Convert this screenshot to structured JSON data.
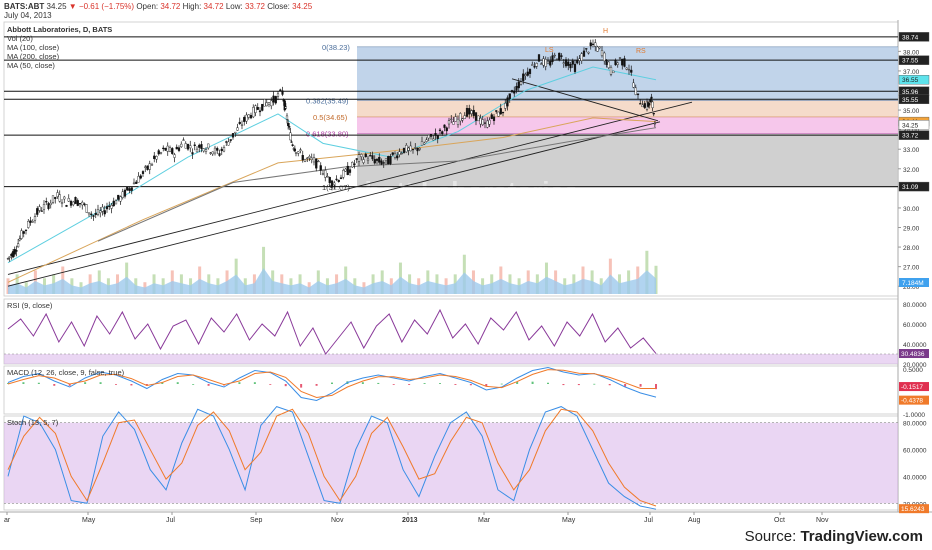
{
  "header": {
    "symbol_line": {
      "symbol": "BATS:ABT",
      "last": "34.25",
      "change": "▼ −0.61 (−1.75%)",
      "open_label": "Open:",
      "open": "34.72",
      "high_label": "High:",
      "high": "34.72",
      "low_label": "Low:",
      "low": "33.72",
      "close_label": "Close:",
      "close": "34.25"
    },
    "date": "July 04, 2013"
  },
  "main_pane": {
    "title": "Abbott Laboratories, D, BATS",
    "studies": [
      "Vol (20)",
      "MA (100, close)",
      "MA (200, close)",
      "MA (50, close)"
    ],
    "watermark": "Abbott Laboratories",
    "fib_labels": [
      "0(38.23)",
      "0.382(35.49)",
      "0.5(34.65)",
      "0.618(33.80)",
      "1(31.07)"
    ],
    "pattern_labels": [
      "LS",
      "H",
      "RS"
    ],
    "price_ticks": [
      "38.00",
      "37.00",
      "35.00",
      "34.00",
      "33.00",
      "32.00",
      "30.00",
      "29.00",
      "28.00",
      "27.00",
      "26.00"
    ],
    "price_tags": [
      {
        "text": "38.74",
        "bg": "#222222",
        "fg": "#ffffff"
      },
      {
        "text": "37.55",
        "bg": "#222222",
        "fg": "#ffffff"
      },
      {
        "text": "36.55",
        "bg": "#5ee3ec",
        "fg": "#222222"
      },
      {
        "text": "35.96",
        "bg": "#222222",
        "fg": "#ffffff"
      },
      {
        "text": "35.55",
        "bg": "#222222",
        "fg": "#ffffff"
      },
      {
        "text": "34.41",
        "bg": "#f2a33a",
        "fg": "#222222"
      },
      {
        "text": "34.25",
        "bg": "#ffffff",
        "fg": "#222222"
      },
      {
        "text": "33.72",
        "bg": "#222222",
        "fg": "#ffffff"
      },
      {
        "text": "31.09",
        "bg": "#222222",
        "fg": "#ffffff"
      }
    ],
    "volume_tag": {
      "text": "7.184M",
      "bg": "#3fa1ee",
      "fg": "#ffffff"
    }
  },
  "rsi_pane": {
    "title": "RSI (9, close)",
    "ticks": [
      "80.0000",
      "60.0000",
      "40.0000",
      "20.0000"
    ],
    "tag": {
      "text": "30.4836",
      "bg": "#7a3a8a",
      "fg": "#ffffff"
    }
  },
  "macd_pane": {
    "title": "MACD (12, 26, close, 9, false, true)",
    "ticks": [
      "0.5000",
      "0.0000",
      "-0.5000",
      "-1.0000"
    ],
    "tags": [
      {
        "text": "-0.1517",
        "bg": "#e03050",
        "fg": "#ffffff"
      },
      {
        "text": "-0.4378",
        "bg": "#f07a2a",
        "fg": "#ffffff"
      }
    ]
  },
  "stoch_pane": {
    "title": "Stoch (13, 5, 7)",
    "ticks": [
      "80.0000",
      "60.0000",
      "40.0000",
      "20.0000"
    ],
    "tag": {
      "text": "15.6243",
      "bg": "#f07a2a",
      "fg": "#ffffff"
    }
  },
  "time_axis": [
    "ar",
    "May",
    "Jul",
    "Sep",
    "Nov",
    "2013",
    "Mar",
    "May",
    "Jul",
    "Aug",
    "Oct",
    "Nov"
  ],
  "source": {
    "prefix": "Source: ",
    "brand": "TradingView.com"
  },
  "colors": {
    "ma50": "#5ecfe0",
    "ma100": "#d9a55a",
    "ma200": "#777777",
    "volume": "#9ec9ec",
    "rsi": "#8a3a9a",
    "macd": "#3a8ee6",
    "signal": "#f07a2a",
    "stoch_k": "#3a8ee6",
    "stoch_d": "#f07a2a",
    "band": "#d8b5ea",
    "fib_top": "#b6cde6",
    "fib_mid": "#f4d7c4",
    "fib_pink": "#f6c4ea",
    "fib_bottom": "#c8c8c8"
  },
  "chart_data": [
    {
      "type": "candlestick",
      "title": "Abbott Laboratories, D, BATS",
      "ylim": [
        25.5,
        39.5
      ],
      "x_months": [
        "Mar 2012",
        "Apr 2012",
        "May 2012",
        "Jun 2012",
        "Jul 2012",
        "Aug 2012",
        "Sep 2012",
        "Oct 2012",
        "Nov 2012",
        "Dec 2012",
        "Jan 2013",
        "Feb 2013",
        "Mar 2013",
        "Apr 2013",
        "May 2013",
        "Jun 2013",
        "Jul 2013"
      ],
      "close_path": [
        [
          0,
          27.4
        ],
        [
          3,
          27.8
        ],
        [
          6,
          28.6
        ],
        [
          10,
          29.3
        ],
        [
          14,
          29.9
        ],
        [
          18,
          30.2
        ],
        [
          22,
          30.6
        ],
        [
          26,
          30.3
        ],
        [
          30,
          30.4
        ],
        [
          34,
          30.1
        ],
        [
          38,
          29.6
        ],
        [
          42,
          29.8
        ],
        [
          46,
          30.2
        ],
        [
          50,
          30.5
        ],
        [
          54,
          31.0
        ],
        [
          58,
          31.5
        ],
        [
          62,
          32.0
        ],
        [
          66,
          32.6
        ],
        [
          70,
          33.0
        ],
        [
          74,
          32.8
        ],
        [
          78,
          33.4
        ],
        [
          82,
          33.0
        ],
        [
          86,
          33.2
        ],
        [
          90,
          33.0
        ],
        [
          94,
          32.8
        ],
        [
          98,
          33.4
        ],
        [
          102,
          34.0
        ],
        [
          106,
          34.6
        ],
        [
          110,
          35.0
        ],
        [
          114,
          35.3
        ],
        [
          118,
          35.5
        ],
        [
          122,
          35.9
        ],
        [
          124,
          34.6
        ],
        [
          126,
          33.4
        ],
        [
          128,
          33.0
        ],
        [
          132,
          32.5
        ],
        [
          136,
          32.4
        ],
        [
          140,
          31.9
        ],
        [
          144,
          31.3
        ],
        [
          148,
          31.6
        ],
        [
          152,
          32.0
        ],
        [
          156,
          32.5
        ],
        [
          160,
          32.6
        ],
        [
          164,
          32.4
        ],
        [
          168,
          32.3
        ],
        [
          172,
          32.7
        ],
        [
          176,
          33.0
        ],
        [
          180,
          32.9
        ],
        [
          184,
          33.2
        ],
        [
          188,
          33.6
        ],
        [
          192,
          33.8
        ],
        [
          196,
          34.3
        ],
        [
          200,
          34.5
        ],
        [
          204,
          34.9
        ],
        [
          208,
          34.7
        ],
        [
          212,
          34.2
        ],
        [
          216,
          34.7
        ],
        [
          220,
          35.0
        ],
        [
          224,
          35.8
        ],
        [
          228,
          36.5
        ],
        [
          232,
          37.1
        ],
        [
          236,
          37.6
        ],
        [
          240,
          37.3
        ],
        [
          244,
          37.8
        ],
        [
          248,
          37.5
        ],
        [
          252,
          37.2
        ],
        [
          256,
          37.9
        ],
        [
          260,
          38.3
        ],
        [
          264,
          38.0
        ],
        [
          268,
          37.0
        ],
        [
          272,
          37.6
        ],
        [
          276,
          37.2
        ],
        [
          280,
          35.6
        ],
        [
          284,
          35.2
        ],
        [
          286,
          35.5
        ],
        [
          288,
          34.25
        ]
      ],
      "volume_M": [
        4,
        5,
        3,
        6,
        4,
        5,
        7,
        4,
        3,
        5,
        6,
        4,
        5,
        8,
        4,
        3,
        5,
        4,
        6,
        5,
        4,
        7,
        5,
        4,
        6,
        9,
        4,
        5,
        12,
        6,
        5,
        4,
        5,
        3,
        6,
        4,
        5,
        7,
        4,
        3,
        5,
        6,
        4,
        8,
        5,
        4,
        6,
        5,
        4,
        5,
        10,
        6,
        4,
        5,
        7,
        5,
        4,
        6,
        5,
        8,
        6,
        4,
        5,
        7,
        6,
        4,
        9,
        5,
        6,
        7,
        11,
        7.184
      ],
      "moving_averages": {
        "MA (50, close)": [
          [
            0,
            27.2
          ],
          [
            40,
            29.8
          ],
          [
            80,
            32.6
          ],
          [
            120,
            34.8
          ],
          [
            140,
            33.3
          ],
          [
            170,
            32.6
          ],
          [
            200,
            33.9
          ],
          [
            230,
            36.0
          ],
          [
            260,
            37.2
          ],
          [
            288,
            36.55
          ]
        ],
        "MA (100, close)": [
          [
            0,
            26.2
          ],
          [
            60,
            29.4
          ],
          [
            120,
            32.3
          ],
          [
            170,
            32.9
          ],
          [
            220,
            33.6
          ],
          [
            260,
            34.6
          ],
          [
            288,
            34.41
          ]
        ],
        "MA (200, close)": [
          [
            40,
            28.3
          ],
          [
            100,
            31.3
          ],
          [
            150,
            32.1
          ],
          [
            200,
            32.4
          ],
          [
            250,
            33.4
          ],
          [
            288,
            34.1
          ]
        ]
      },
      "fibonacci": {
        "0": 38.23,
        "0.382": 35.49,
        "0.5": 34.65,
        "0.618": 33.8,
        "1": 31.07
      },
      "horizontal_levels": [
        38.74,
        37.55,
        35.96,
        35.55,
        33.72,
        31.09
      ],
      "head_and_shoulders": [
        "LS",
        "H",
        "RS"
      ]
    },
    {
      "type": "line",
      "title": "RSI (9, close)",
      "ylim": [
        20,
        80
      ],
      "band": [
        30,
        70
      ],
      "series": [
        {
          "values": [
            55,
            65,
            48,
            70,
            42,
            62,
            38,
            68,
            50,
            72,
            45,
            60,
            35,
            58,
            64,
            40,
            66,
            52,
            70,
            44,
            60,
            48,
            72,
            38,
            56,
            30,
            46,
            62,
            36,
            58,
            70,
            42,
            64,
            50,
            74,
            46,
            60,
            40,
            66,
            54,
            72,
            44,
            58,
            38,
            62,
            48,
            70,
            42,
            56,
            36,
            46,
            30.48
          ]
        }
      ]
    },
    {
      "type": "line",
      "title": "MACD (12, 26, close, 9, false, true)",
      "ylim": [
        -1.0,
        0.6
      ],
      "series": [
        {
          "values": [
            0.05,
            0.25,
            0.35,
            0.1,
            -0.1,
            0.2,
            0.4,
            0.3,
            0.1,
            -0.15,
            0.15,
            0.35,
            0.3,
            0.05,
            -0.1,
            0.2,
            0.45,
            0.38,
            0.1,
            -0.45,
            -0.55,
            -0.3,
            0.05,
            0.2,
            0.3,
            0.2,
            0.1,
            0.25,
            0.35,
            0.2,
            0.05,
            -0.2,
            -0.1,
            0.2,
            0.45,
            0.55,
            0.4,
            0.3,
            0.35,
            0.15,
            -0.1,
            -0.3,
            -0.4378
          ]
        },
        {
          "values": [
            0.0,
            0.15,
            0.28,
            0.2,
            0.0,
            0.1,
            0.3,
            0.32,
            0.18,
            -0.05,
            0.05,
            0.25,
            0.3,
            0.15,
            -0.02,
            0.1,
            0.35,
            0.4,
            0.22,
            -0.25,
            -0.45,
            -0.38,
            -0.1,
            0.1,
            0.24,
            0.24,
            0.15,
            0.2,
            0.3,
            0.25,
            0.12,
            -0.08,
            -0.12,
            0.08,
            0.32,
            0.48,
            0.46,
            0.36,
            0.34,
            0.22,
            0.04,
            -0.15,
            -0.1517
          ]
        }
      ]
    },
    {
      "type": "line",
      "title": "Stoch (13, 5, 7)",
      "ylim": [
        15,
        85
      ],
      "band": [
        20,
        80
      ],
      "series": [
        {
          "values": [
            40,
            85,
            80,
            60,
            22,
            20,
            70,
            88,
            75,
            45,
            30,
            65,
            90,
            85,
            60,
            30,
            78,
            92,
            88,
            55,
            22,
            20,
            60,
            85,
            80,
            45,
            25,
            55,
            80,
            88,
            70,
            30,
            22,
            60,
            88,
            92,
            85,
            60,
            35,
            25,
            18,
            15.6
          ]
        },
        {
          "values": [
            45,
            70,
            84,
            72,
            40,
            22,
            50,
            80,
            82,
            60,
            38,
            50,
            78,
            88,
            74,
            45,
            58,
            85,
            90,
            72,
            40,
            22,
            40,
            72,
            84,
            62,
            38,
            42,
            66,
            84,
            80,
            50,
            30,
            45,
            74,
            90,
            88,
            74,
            50,
            32,
            22,
            18
          ]
        }
      ]
    }
  ]
}
